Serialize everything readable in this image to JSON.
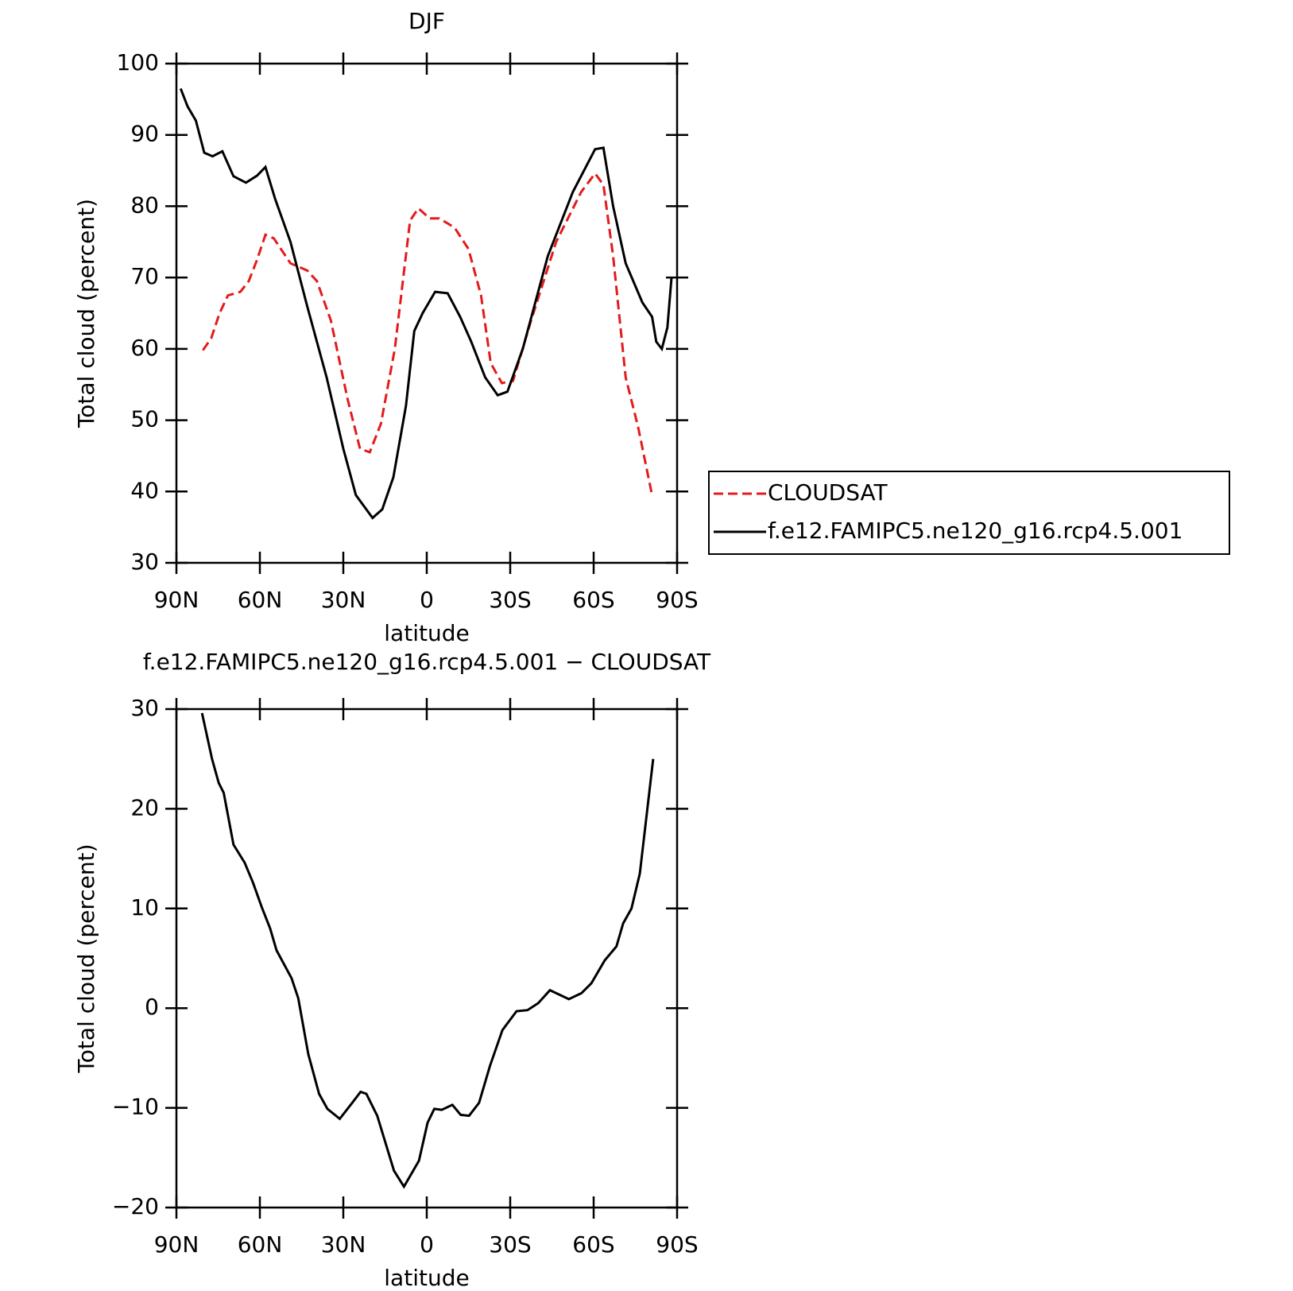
{
  "chart_data": [
    {
      "type": "line",
      "title": "DJF",
      "xlabel": "latitude",
      "ylabel": "Total cloud (percent)",
      "xlim": [
        90,
        -90
      ],
      "xticks": [
        {
          "value": 90,
          "label": "90N"
        },
        {
          "value": 60,
          "label": "60N"
        },
        {
          "value": 30,
          "label": "30N"
        },
        0,
        {
          "value": -30,
          "label": "30S"
        },
        {
          "value": -60,
          "label": "60S"
        },
        {
          "value": -90,
          "label": "90S"
        }
      ],
      "ylim": [
        30,
        100
      ],
      "yticks": [
        30,
        40,
        50,
        60,
        70,
        80,
        90,
        100
      ],
      "legend": "right",
      "series": [
        {
          "name": "CLOUDSAT",
          "color": "#e41a1c",
          "dashed": true,
          "x": [
            80.5,
            77.5,
            74.5,
            71.5,
            67,
            64,
            61,
            58,
            55,
            49,
            43,
            39.5,
            34.5,
            28.5,
            24,
            20.5,
            16.5,
            11.5,
            6,
            3,
            -1,
            -4.5,
            -10,
            -15,
            -19.5,
            -23,
            -27,
            -31,
            -37.5,
            -46.5,
            -55.5,
            -60.5,
            -63.5,
            -67,
            -71.5,
            -76,
            -81
          ],
          "values": [
            59.8,
            61.5,
            65,
            67.5,
            68,
            69.5,
            72.5,
            76,
            75.5,
            72,
            71,
            69.5,
            64,
            53,
            46,
            45.5,
            49.5,
            60,
            78,
            79.7,
            78.3,
            78.3,
            77,
            74,
            67.5,
            58,
            55.2,
            55.5,
            64,
            75,
            82,
            84.6,
            83,
            73,
            56,
            49,
            39.5
          ]
        },
        {
          "name": "f.e12.FAMIPC5.ne120_g16.rcp4.5.001",
          "color": "#000000",
          "dashed": false,
          "x": [
            88.5,
            86,
            83,
            80,
            77,
            73.5,
            69.5,
            65,
            61,
            58,
            54.5,
            49,
            43,
            36,
            30,
            25.5,
            19.5,
            16,
            12,
            7.5,
            4.5,
            1.5,
            -3,
            -7.5,
            -12,
            -16,
            -21,
            -25.5,
            -29,
            -34.5,
            -43.5,
            -52.5,
            -60.5,
            -63.5,
            -67,
            -71.5,
            -77.5,
            -81,
            -82.5,
            -84.5,
            -86.5,
            -88
          ],
          "values": [
            96.5,
            94,
            92,
            87.5,
            87,
            87.7,
            84.2,
            83.3,
            84.3,
            85.5,
            81,
            75,
            66,
            56,
            46,
            39.5,
            36.3,
            37.5,
            42,
            52,
            62.5,
            65,
            68,
            67.8,
            64.5,
            61,
            56,
            53.5,
            54,
            60,
            73,
            82,
            88,
            88.2,
            80,
            72,
            66.5,
            64.5,
            61,
            60,
            63,
            70
          ]
        }
      ]
    },
    {
      "type": "line",
      "title": "f.e12.FAMIPC5.ne120_g16.rcp4.5.001 − CLOUDSAT",
      "xlabel": "latitude",
      "ylabel": "Total cloud (percent)",
      "xlim": [
        90,
        -90
      ],
      "xticks": [
        {
          "value": 90,
          "label": "90N"
        },
        {
          "value": 60,
          "label": "60N"
        },
        {
          "value": 30,
          "label": "30N"
        },
        0,
        {
          "value": -30,
          "label": "30S"
        },
        {
          "value": -60,
          "label": "60S"
        },
        {
          "value": -90,
          "label": "90S"
        }
      ],
      "ylim": [
        -20,
        30
      ],
      "yticks": [
        {
          "value": -20,
          "label": "−20"
        },
        {
          "value": -10,
          "label": "−10"
        },
        0,
        10,
        20,
        30
      ],
      "series": [
        {
          "color": "#000000",
          "dashed": false,
          "x": [
            80.8,
            77.2,
            74.8,
            73,
            69.5,
            65.5,
            62.5,
            59.3,
            56.3,
            54,
            48.6,
            46.2,
            42.6,
            38.7,
            35.7,
            31.3,
            26.8,
            23.8,
            21.7,
            17.8,
            11.8,
            8.2,
            2.8,
            -0.3,
            -2.7,
            -5.4,
            -9.2,
            -12.2,
            -15.2,
            -18.8,
            -22.7,
            -27.2,
            -32.3,
            -36.2,
            -40.1,
            -44.3,
            -51.1,
            -55.6,
            -59.2,
            -64,
            -68.2,
            -70.6,
            -73.6,
            -76.6,
            -81.4
          ],
          "values": [
            29.6,
            25,
            22.6,
            21.6,
            16.4,
            14.6,
            12.6,
            10.1,
            8,
            5.8,
            3,
            1,
            -4.6,
            -8.6,
            -10.1,
            -11.1,
            -9.5,
            -8.4,
            -8.6,
            -10.8,
            -16.3,
            -17.9,
            -15.3,
            -11.5,
            -10.1,
            -10.2,
            -9.7,
            -10.7,
            -10.8,
            -9.5,
            -5.8,
            -2.2,
            -0.3,
            -0.2,
            0.5,
            1.8,
            0.9,
            1.5,
            2.5,
            4.8,
            6.2,
            8.5,
            10,
            13.5,
            25
          ]
        }
      ]
    }
  ]
}
